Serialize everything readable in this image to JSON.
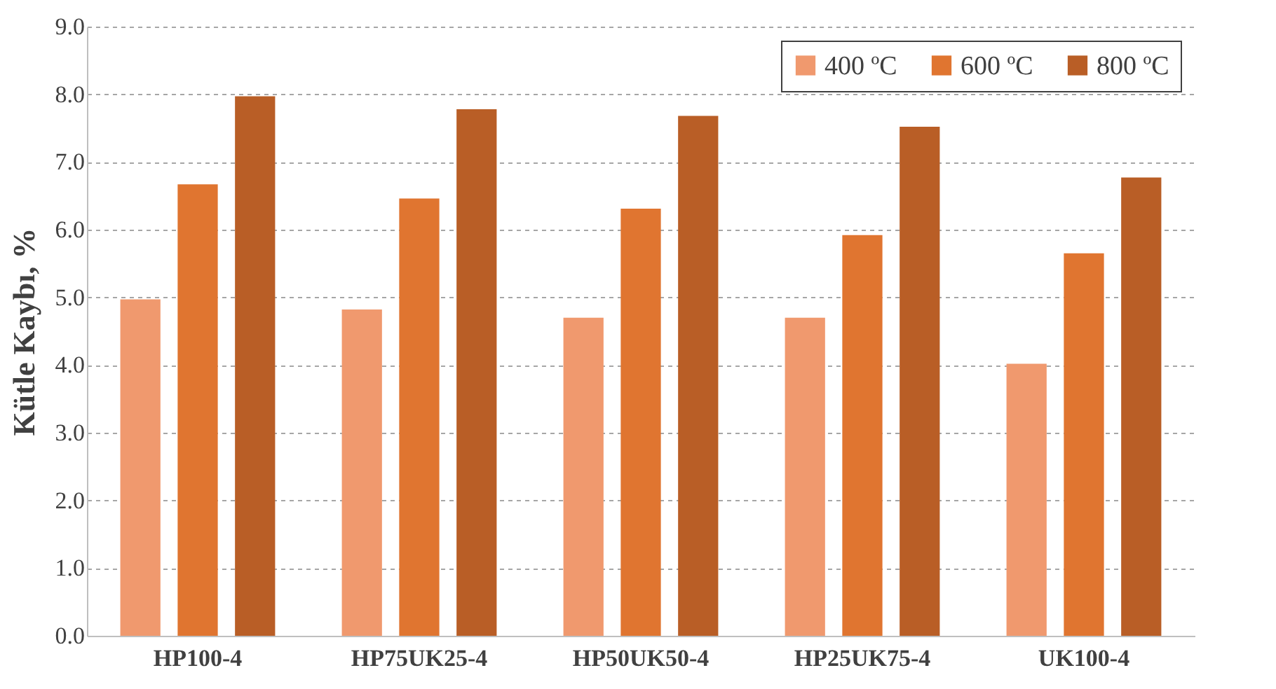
{
  "chart_data": {
    "type": "bar",
    "ylabel": "Kütle Kaybı, %",
    "categories": [
      "HP100-4",
      "HP75UK25-4",
      "HP50UK50-4",
      "HP25UK75-4",
      "UK100-4"
    ],
    "series": [
      {
        "name": "400 ºC",
        "color": "#f0996e",
        "values": [
          4.97,
          4.82,
          4.7,
          4.7,
          4.02
        ]
      },
      {
        "name": "600 ºC",
        "color": "#e07530",
        "values": [
          6.67,
          6.46,
          6.31,
          5.92,
          5.65
        ]
      },
      {
        "name": "800 ºC",
        "color": "#b95e26",
        "values": [
          7.97,
          7.78,
          7.68,
          7.52,
          6.77
        ]
      }
    ],
    "ylim": [
      0,
      9
    ],
    "yticks": [
      {
        "value": 0,
        "label": "0.0"
      },
      {
        "value": 1,
        "label": "1.0"
      },
      {
        "value": 2,
        "label": "2.0"
      },
      {
        "value": 3,
        "label": "3.0"
      },
      {
        "value": 4,
        "label": "4.0"
      },
      {
        "value": 5,
        "label": "5.0"
      },
      {
        "value": 6,
        "label": "6.0"
      },
      {
        "value": 7,
        "label": "7.0"
      },
      {
        "value": 8,
        "label": "8.0"
      },
      {
        "value": 9,
        "label": "9.0"
      }
    ],
    "grid": "y",
    "legend": "top right"
  }
}
